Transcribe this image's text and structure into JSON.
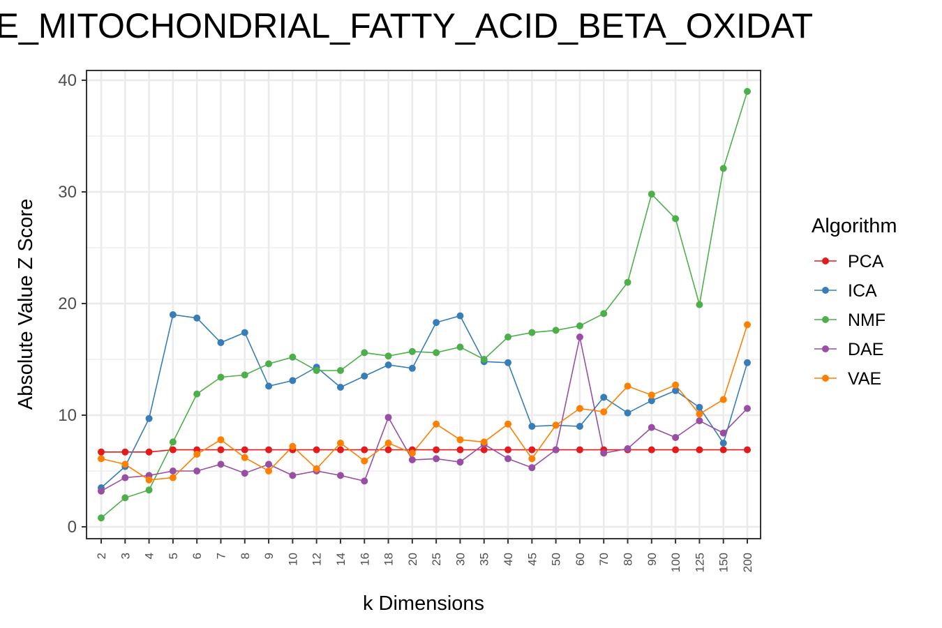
{
  "chart_data": {
    "type": "line",
    "title": "ME_MITOCHONDRIAL_FATTY_ACID_BETA_OXIDAT",
    "xlabel": "k Dimensions",
    "ylabel": "Absolute Value Z Score",
    "ylim": [
      -1,
      41
    ],
    "yticks": [
      "0",
      "10",
      "20",
      "30",
      "40"
    ],
    "grid": true,
    "legend_title": "Algorithm",
    "legend_position": "right",
    "categories": [
      "2",
      "3",
      "4",
      "5",
      "6",
      "7",
      "8",
      "9",
      "10",
      "12",
      "14",
      "16",
      "18",
      "20",
      "25",
      "30",
      "35",
      "40",
      "45",
      "50",
      "60",
      "70",
      "80",
      "90",
      "100",
      "125",
      "150",
      "200"
    ],
    "series": [
      {
        "name": "PCA",
        "color": "#e41a1c",
        "values": [
          6.7,
          6.7,
          6.7,
          6.9,
          6.9,
          6.9,
          6.9,
          6.9,
          6.9,
          6.9,
          6.9,
          6.9,
          6.9,
          6.9,
          6.9,
          6.9,
          6.9,
          6.9,
          6.9,
          6.9,
          6.9,
          6.9,
          6.9,
          6.9,
          6.9,
          6.9,
          6.9,
          6.9
        ]
      },
      {
        "name": "ICA",
        "color": "#377eb8",
        "values": [
          3.5,
          5.4,
          9.7,
          19.0,
          18.7,
          16.5,
          17.4,
          12.6,
          13.1,
          14.3,
          12.5,
          13.5,
          14.5,
          14.2,
          18.3,
          18.9,
          14.8,
          14.7,
          9.0,
          9.1,
          9.0,
          11.6,
          10.2,
          11.3,
          12.2,
          10.7,
          7.5,
          14.7
        ]
      },
      {
        "name": "NMF",
        "color": "#4daf4a",
        "values": [
          0.8,
          2.6,
          3.3,
          7.6,
          11.9,
          13.4,
          13.6,
          14.6,
          15.2,
          14.0,
          14.0,
          15.6,
          15.3,
          15.7,
          15.6,
          16.1,
          15.0,
          17.0,
          17.4,
          17.6,
          18.0,
          19.1,
          21.9,
          29.8,
          27.6,
          19.9,
          32.1,
          39.0
        ]
      },
      {
        "name": "DAE",
        "color": "#984ea3",
        "values": [
          3.2,
          4.4,
          4.6,
          5.0,
          5.0,
          5.6,
          4.8,
          5.6,
          4.6,
          5.0,
          4.6,
          4.1,
          9.8,
          6.0,
          6.1,
          5.8,
          7.4,
          6.1,
          5.3,
          6.9,
          17.0,
          6.6,
          7.0,
          8.9,
          8.0,
          9.5,
          8.4,
          10.6
        ]
      },
      {
        "name": "VAE",
        "color": "#ff7f00",
        "values": [
          6.1,
          5.6,
          4.2,
          4.4,
          6.5,
          7.8,
          6.2,
          5.0,
          7.2,
          5.2,
          7.5,
          5.9,
          7.5,
          6.6,
          9.2,
          7.8,
          7.6,
          9.2,
          6.1,
          9.1,
          10.6,
          10.3,
          12.6,
          11.8,
          12.7,
          10.1,
          11.4,
          18.1
        ]
      }
    ]
  }
}
